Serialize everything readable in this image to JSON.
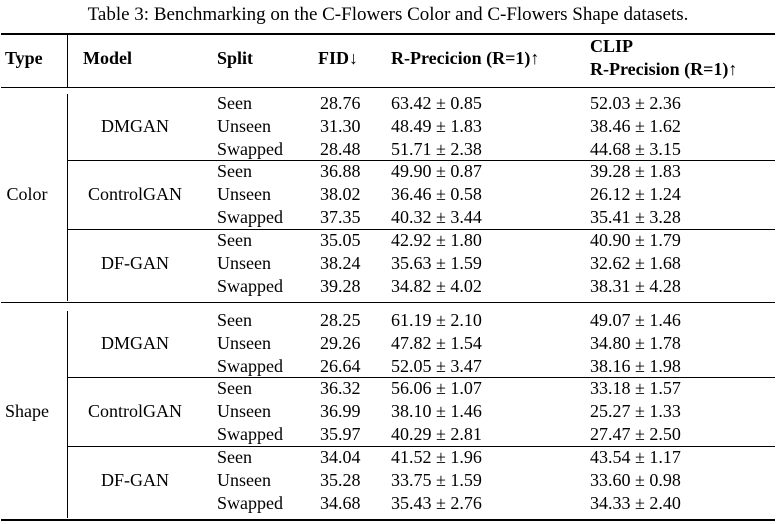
{
  "caption": "Table 3: Benchmarking on the C-Flowers Color and C-Flowers Shape datasets.",
  "headers": {
    "type": "Type",
    "model": "Model",
    "split": "Split",
    "fid": "FID↓",
    "rprec": "R-Precicion (R=1)↑",
    "clip_line1": "CLIP",
    "clip_line2": "R-Precision (R=1)↑"
  },
  "groups": [
    {
      "type": "Color",
      "models": [
        {
          "name": "DMGAN",
          "rows": [
            {
              "split": "Seen",
              "fid": "28.76",
              "rprec": "63.42 ± 0.85",
              "clip": "52.03 ± 2.36"
            },
            {
              "split": "Unseen",
              "fid": "31.30",
              "rprec": "48.49 ± 1.83",
              "clip": "38.46 ± 1.62"
            },
            {
              "split": "Swapped",
              "fid": "28.48",
              "rprec": "51.71 ± 2.38",
              "clip": "44.68 ± 3.15"
            }
          ]
        },
        {
          "name": "ControlGAN",
          "rows": [
            {
              "split": "Seen",
              "fid": "36.88",
              "rprec": "49.90 ± 0.87",
              "clip": "39.28 ± 1.83"
            },
            {
              "split": "Unseen",
              "fid": "38.02",
              "rprec": "36.46 ± 0.58",
              "clip": "26.12 ± 1.24"
            },
            {
              "split": "Swapped",
              "fid": "37.35",
              "rprec": "40.32 ± 3.44",
              "clip": "35.41 ± 3.28"
            }
          ]
        },
        {
          "name": "DF-GAN",
          "rows": [
            {
              "split": "Seen",
              "fid": "35.05",
              "rprec": "42.92 ± 1.80",
              "clip": "40.90 ± 1.79"
            },
            {
              "split": "Unseen",
              "fid": "38.24",
              "rprec": "35.63 ± 1.59",
              "clip": "32.62 ± 1.68"
            },
            {
              "split": "Swapped",
              "fid": "39.28",
              "rprec": "34.82 ± 4.02",
              "clip": "38.31 ± 4.28"
            }
          ]
        }
      ]
    },
    {
      "type": "Shape",
      "models": [
        {
          "name": "DMGAN",
          "rows": [
            {
              "split": "Seen",
              "fid": "28.25",
              "rprec": "61.19 ± 2.10",
              "clip": "49.07 ± 1.46"
            },
            {
              "split": "Unseen",
              "fid": "29.26",
              "rprec": "47.82 ± 1.54",
              "clip": "34.80 ± 1.78"
            },
            {
              "split": "Swapped",
              "fid": "26.64",
              "rprec": "52.05 ± 3.47",
              "clip": "38.16 ± 1.98"
            }
          ]
        },
        {
          "name": "ControlGAN",
          "rows": [
            {
              "split": "Seen",
              "fid": "36.32",
              "rprec": "56.06 ± 1.07",
              "clip": "33.18 ± 1.57"
            },
            {
              "split": "Unseen",
              "fid": "36.99",
              "rprec": "38.10 ± 1.46",
              "clip": "25.27 ± 1.33"
            },
            {
              "split": "Swapped",
              "fid": "35.97",
              "rprec": "40.29 ± 2.81",
              "clip": "27.47 ± 2.50"
            }
          ]
        },
        {
          "name": "DF-GAN",
          "rows": [
            {
              "split": "Seen",
              "fid": "34.04",
              "rprec": "41.52 ± 1.96",
              "clip": "43.54 ± 1.17"
            },
            {
              "split": "Unseen",
              "fid": "35.28",
              "rprec": "33.75 ± 1.59",
              "clip": "33.60 ± 0.98"
            },
            {
              "split": "Swapped",
              "fid": "34.68",
              "rprec": "35.43 ± 2.76",
              "clip": "34.33 ± 2.40"
            }
          ]
        }
      ]
    }
  ]
}
